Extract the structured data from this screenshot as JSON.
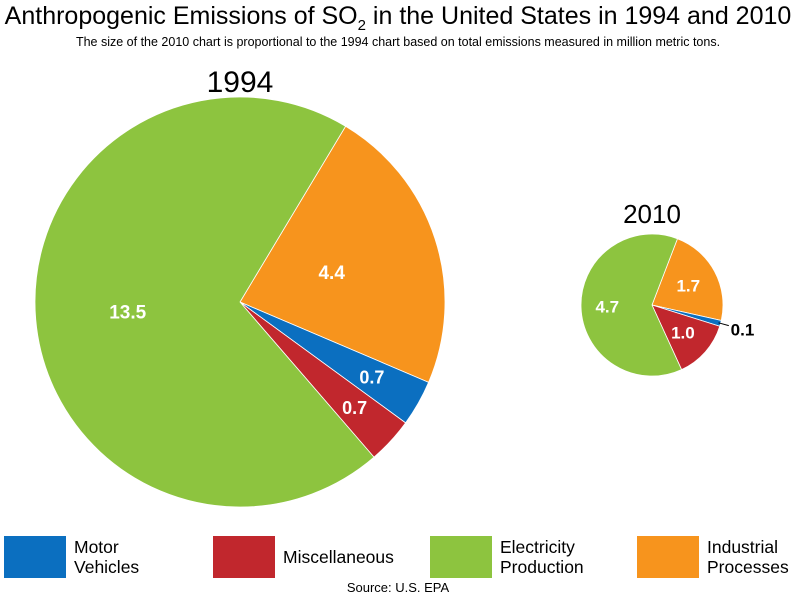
{
  "title": {
    "main": "Anthropogenic Emissions of SO",
    "sub": "2",
    "rest": " in the United States in 1994 and 2010"
  },
  "subtitle": "The size of the 2010 chart is proportional to the 1994 chart based on total emissions measured in million metric tons.",
  "colors": {
    "motor_vehicles": "#0b6fc0",
    "miscellaneous": "#c1272d",
    "electricity": "#8dc43f",
    "industrial": "#f7941d"
  },
  "chart_data": [
    {
      "type": "pie",
      "title": "1994",
      "unit": "million metric tons",
      "slices": [
        {
          "category": "Industrial Processes",
          "value": 4.4,
          "label": "4.4",
          "color": "#f7941d"
        },
        {
          "category": "Motor Vehicles",
          "value": 0.7,
          "label": "0.7",
          "color": "#0b6fc0"
        },
        {
          "category": "Miscellaneous",
          "value": 0.7,
          "label": "0.7",
          "color": "#c1272d"
        },
        {
          "category": "Electricity Production",
          "value": 13.5,
          "label": "13.5",
          "color": "#8dc43f"
        }
      ]
    },
    {
      "type": "pie",
      "title": "2010",
      "unit": "million metric tons",
      "slices": [
        {
          "category": "Industrial Processes",
          "value": 1.7,
          "label": "1.7",
          "color": "#f7941d"
        },
        {
          "category": "Motor Vehicles",
          "value": 0.1,
          "label": "0.1",
          "color": "#0b6fc0"
        },
        {
          "category": "Miscellaneous",
          "value": 1.0,
          "label": "1.0",
          "color": "#c1272d"
        },
        {
          "category": "Electricity Production",
          "value": 4.7,
          "label": "4.7",
          "color": "#8dc43f"
        }
      ]
    }
  ],
  "legend": [
    {
      "line1": "Motor",
      "line2": "Vehicles",
      "color": "#0b6fc0"
    },
    {
      "line1": "Miscellaneous",
      "line2": "",
      "color": "#c1272d"
    },
    {
      "line1": "Electricity",
      "line2": "Production",
      "color": "#8dc43f"
    },
    {
      "line1": "Industrial",
      "line2": "Processes",
      "color": "#f7941d"
    }
  ],
  "source": "Source: U.S. EPA"
}
